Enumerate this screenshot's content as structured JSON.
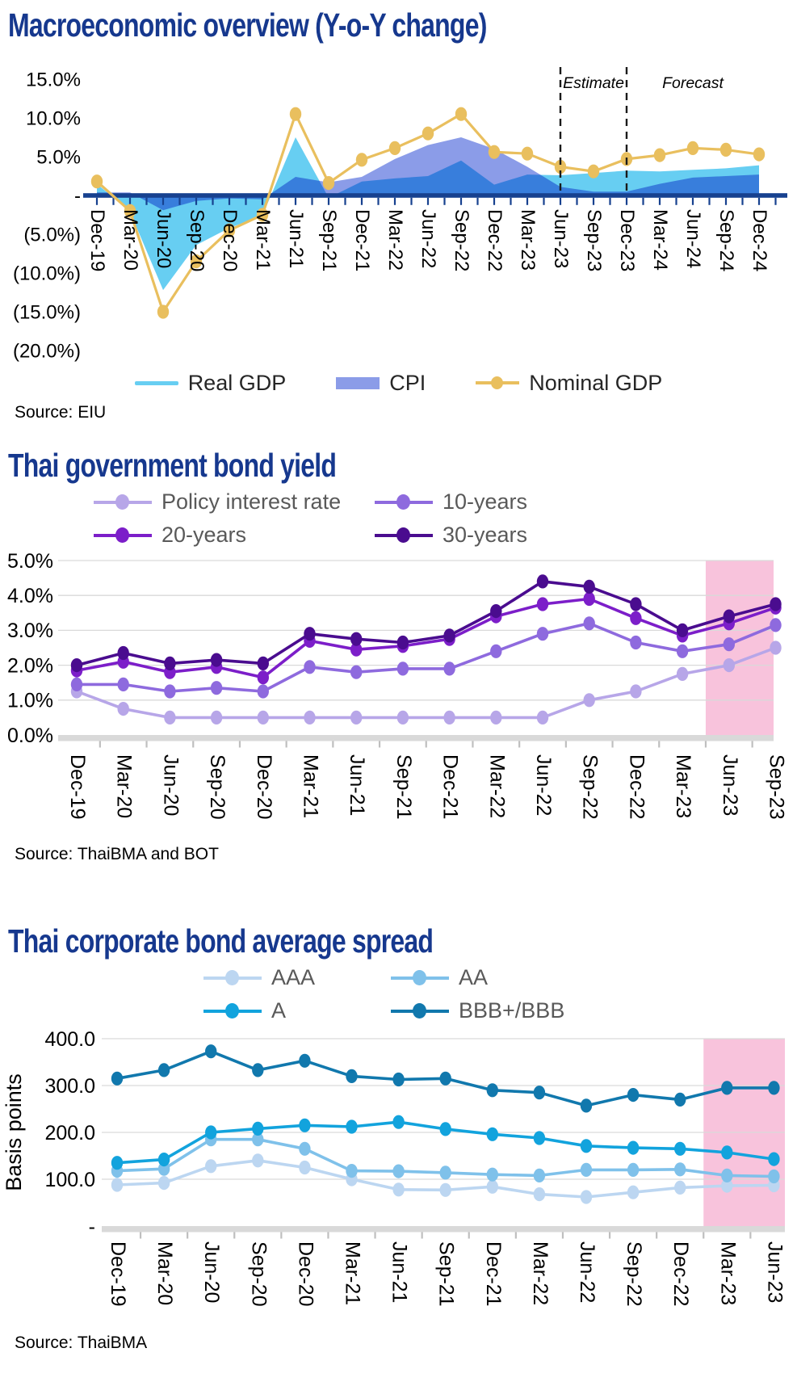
{
  "theme": {
    "title_color": "#16388e",
    "axis_navy": "#17418f",
    "baseline_gray": "#d9d9d9",
    "tick_gray": "#bfbfbf",
    "gridline_gray": "#d9d9d9",
    "highlight_pink": "#f8c3dc",
    "dashed_rule_black": "#1a1a1a"
  },
  "chart_data": [
    {
      "id": "macro-overview",
      "type": "area",
      "title": "Macroeconomic overview (Y-o-Y change)",
      "source": "Source: EIU",
      "categories": [
        "Dec-19",
        "Mar-20",
        "Jun-20",
        "Sep-20",
        "Dec-20",
        "Mar-21",
        "Jun-21",
        "Sep-21",
        "Dec-21",
        "Mar-22",
        "Jun-22",
        "Sep-22",
        "Dec-22",
        "Mar-23",
        "Jun-23",
        "Sep-23",
        "Dec-23",
        "Mar-24",
        "Jun-24",
        "Sep-24",
        "Dec-24"
      ],
      "ylim": [
        -20,
        15
      ],
      "grid": false,
      "legend_position": "bottom-center",
      "yticks": [
        {
          "v": 15,
          "label": "15.0%"
        },
        {
          "v": 10,
          "label": "10.0%"
        },
        {
          "v": 5,
          "label": "5.0%"
        },
        {
          "v": 0,
          "label": "-"
        },
        {
          "v": -5,
          "label": "(5.0%)"
        },
        {
          "v": -10,
          "label": "(10.0%)"
        },
        {
          "v": -15,
          "label": "(15.0%)"
        },
        {
          "v": -20,
          "label": "(20.0%)"
        }
      ],
      "series": [
        {
          "name": "Real GDP",
          "type": "area",
          "color": "#67cef2",
          "swatch": "line",
          "blend": "multiply",
          "lw": 2,
          "values": [
            1.5,
            -2.1,
            -12.2,
            -6.4,
            -4.2,
            -2.6,
            7.5,
            -0.3,
            1.8,
            2.2,
            2.5,
            4.5,
            1.4,
            2.7,
            2.6,
            2.9,
            3.2,
            3.1,
            3.3,
            3.5,
            3.9
          ]
        },
        {
          "name": "CPI",
          "type": "area",
          "color": "#8b9ce8",
          "swatch": "rect",
          "lw": 0,
          "values": [
            0.4,
            0.4,
            -1.9,
            -0.7,
            -0.4,
            -0.5,
            2.4,
            1.7,
            2.4,
            4.7,
            6.5,
            7.5,
            6.0,
            3.7,
            1.1,
            0.5,
            0.5,
            1.5,
            2.3,
            2.5,
            2.7
          ]
        },
        {
          "name": "Nominal GDP",
          "type": "line",
          "color": "#e9bf5e",
          "swatch": "line-dot",
          "marker": true,
          "lw": 3.2,
          "values": [
            1.8,
            -2.0,
            -15.0,
            -8.5,
            -4.5,
            -2.5,
            10.5,
            1.6,
            4.6,
            6.1,
            8.0,
            10.5,
            5.6,
            5.4,
            3.7,
            3.1,
            4.7,
            5.2,
            6.1,
            5.9,
            5.3
          ]
        }
      ],
      "annotations": {
        "vrule_categories": [
          "Jun-23",
          "Dec-23"
        ],
        "labels": [
          {
            "text": "Estimate",
            "at": "Sep-23"
          },
          {
            "text": "Forecast",
            "at": "Jun-24"
          }
        ]
      }
    },
    {
      "id": "thai-government-bond-yield",
      "type": "line",
      "title": "Thai government bond yield",
      "source": "Source: ThaiBMA and BOT",
      "categories": [
        "Dec-19",
        "Mar-20",
        "Jun-20",
        "Sep-20",
        "Dec-20",
        "Mar-21",
        "Jun-21",
        "Sep-21",
        "Dec-21",
        "Mar-22",
        "Jun-22",
        "Sep-22",
        "Dec-22",
        "Mar-23",
        "Jun-23",
        "Sep-23"
      ],
      "ylim": [
        0,
        5
      ],
      "grid": true,
      "legend_position": "top",
      "yticks": [
        {
          "v": 5,
          "label": "5.0%"
        },
        {
          "v": 4,
          "label": "4.0%"
        },
        {
          "v": 3,
          "label": "3.0%"
        },
        {
          "v": 2,
          "label": "2.0%"
        },
        {
          "v": 1,
          "label": "1.0%"
        },
        {
          "v": 0,
          "label": "0.0%"
        }
      ],
      "band": {
        "from": "Jun-23",
        "to": "Sep-23",
        "color": "#f8c3dc"
      },
      "series": [
        {
          "name": "Policy interest rate",
          "type": "line",
          "color": "#b7a6e8",
          "swatch": "line-dot",
          "marker": true,
          "lw": 3.6,
          "values": [
            1.25,
            0.75,
            0.5,
            0.5,
            0.5,
            0.5,
            0.5,
            0.5,
            0.5,
            0.5,
            0.5,
            1.0,
            1.25,
            1.75,
            2.0,
            2.5
          ]
        },
        {
          "name": "10-years",
          "type": "line",
          "color": "#8e6ade",
          "swatch": "line-dot",
          "marker": true,
          "lw": 3.6,
          "values": [
            1.45,
            1.45,
            1.25,
            1.35,
            1.25,
            1.95,
            1.8,
            1.9,
            1.9,
            2.4,
            2.9,
            3.2,
            2.65,
            2.4,
            2.6,
            3.15
          ]
        },
        {
          "name": "20-years",
          "type": "line",
          "color": "#7c1ec9",
          "swatch": "line-dot",
          "marker": true,
          "lw": 3.6,
          "values": [
            1.85,
            2.1,
            1.8,
            1.95,
            1.65,
            2.7,
            2.45,
            2.55,
            2.75,
            3.4,
            3.75,
            3.9,
            3.35,
            2.85,
            3.2,
            3.65
          ]
        },
        {
          "name": "30-years",
          "type": "line",
          "color": "#4a0c8f",
          "swatch": "line-dot",
          "marker": true,
          "lw": 3.6,
          "values": [
            2.0,
            2.35,
            2.05,
            2.15,
            2.05,
            2.9,
            2.75,
            2.65,
            2.85,
            3.55,
            4.4,
            4.25,
            3.75,
            3.0,
            3.4,
            3.75
          ]
        }
      ]
    },
    {
      "id": "thai-corporate-bond-average-spread",
      "type": "line",
      "title": "Thai corporate bond average spread",
      "source": "Source: ThaiBMA",
      "ylabel": "Basis points",
      "categories": [
        "Dec-19",
        "Mar-20",
        "Jun-20",
        "Sep-20",
        "Dec-20",
        "Mar-21",
        "Jun-21",
        "Sep-21",
        "Dec-21",
        "Mar-22",
        "Jun-22",
        "Sep-22",
        "Dec-22",
        "Mar-23",
        "Jun-23"
      ],
      "ylim": [
        0,
        400
      ],
      "grid": true,
      "legend_position": "top",
      "yticks": [
        {
          "v": 400,
          "label": "400.0"
        },
        {
          "v": 300,
          "label": "300.0"
        },
        {
          "v": 200,
          "label": "200.0"
        },
        {
          "v": 100,
          "label": "100.0"
        },
        {
          "v": 0,
          "label": "-"
        }
      ],
      "band": {
        "from": "Mar-23",
        "to": "Jun-23",
        "color": "#f8c3dc"
      },
      "series": [
        {
          "name": "AAA",
          "type": "line",
          "color": "#bcd6f1",
          "swatch": "line-dot",
          "marker": true,
          "lw": 3.6,
          "values": [
            88,
            92,
            128,
            140,
            125,
            100,
            78,
            77,
            84,
            68,
            62,
            72,
            82,
            86,
            87
          ]
        },
        {
          "name": "AA",
          "type": "line",
          "color": "#7fc1ea",
          "swatch": "line-dot",
          "marker": true,
          "lw": 3.6,
          "values": [
            118,
            122,
            185,
            185,
            165,
            118,
            117,
            114,
            110,
            108,
            120,
            120,
            121,
            108,
            106
          ]
        },
        {
          "name": "A",
          "type": "line",
          "color": "#12a3dd",
          "swatch": "line-dot",
          "marker": true,
          "lw": 3.6,
          "values": [
            135,
            142,
            200,
            208,
            215,
            212,
            222,
            207,
            196,
            188,
            171,
            167,
            165,
            157,
            143
          ]
        },
        {
          "name": "BBB+/BBB",
          "type": "line",
          "color": "#1178ad",
          "swatch": "line-dot",
          "marker": true,
          "lw": 3.6,
          "values": [
            315,
            333,
            373,
            333,
            353,
            320,
            313,
            315,
            290,
            285,
            257,
            280,
            270,
            295,
            295
          ]
        }
      ]
    }
  ]
}
